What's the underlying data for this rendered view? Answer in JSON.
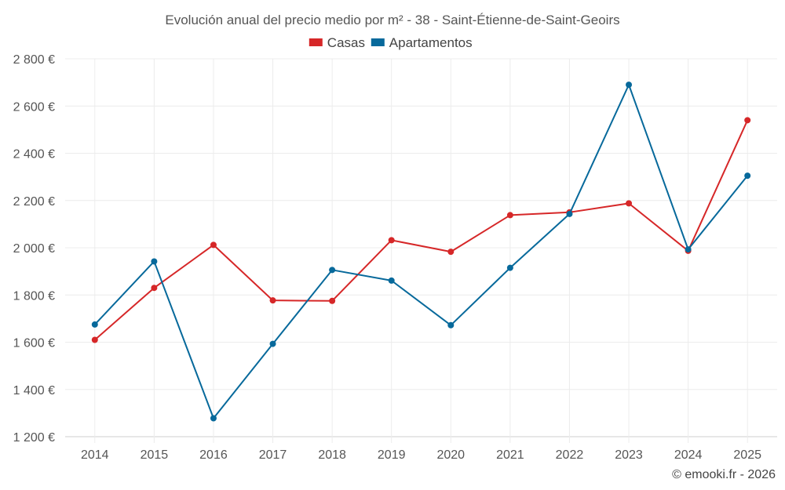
{
  "chart_data": {
    "type": "line",
    "title": "Evolución anual del precio medio por m² - 38 - Saint-Étienne-de-Saint-Geoirs",
    "xlabel": "",
    "ylabel": "",
    "categories": [
      "2014",
      "2015",
      "2016",
      "2017",
      "2018",
      "2019",
      "2020",
      "2021",
      "2022",
      "2023",
      "2024",
      "2025"
    ],
    "ylim": [
      1200,
      2800
    ],
    "yticks": [
      1200,
      1400,
      1600,
      1800,
      2000,
      2200,
      2400,
      2600,
      2800
    ],
    "ytick_labels": [
      "1 200 €",
      "1 400 €",
      "1 600 €",
      "1 800 €",
      "2 000 €",
      "2 200 €",
      "2 400 €",
      "2 600 €",
      "2 800 €"
    ],
    "grid": true,
    "legend_position": "top-center",
    "series": [
      {
        "name": "Casas",
        "color": "#d62728",
        "values": [
          1610,
          1830,
          2012,
          1777,
          1775,
          2032,
          1983,
          2138,
          2150,
          2188,
          1987,
          2540
        ]
      },
      {
        "name": "Apartamentos",
        "color": "#07699b",
        "values": [
          1675,
          1942,
          1278,
          1593,
          1906,
          1861,
          1672,
          1915,
          2143,
          2690,
          1993,
          2305
        ]
      }
    ]
  },
  "credit": "© emooki.fr - 2026"
}
